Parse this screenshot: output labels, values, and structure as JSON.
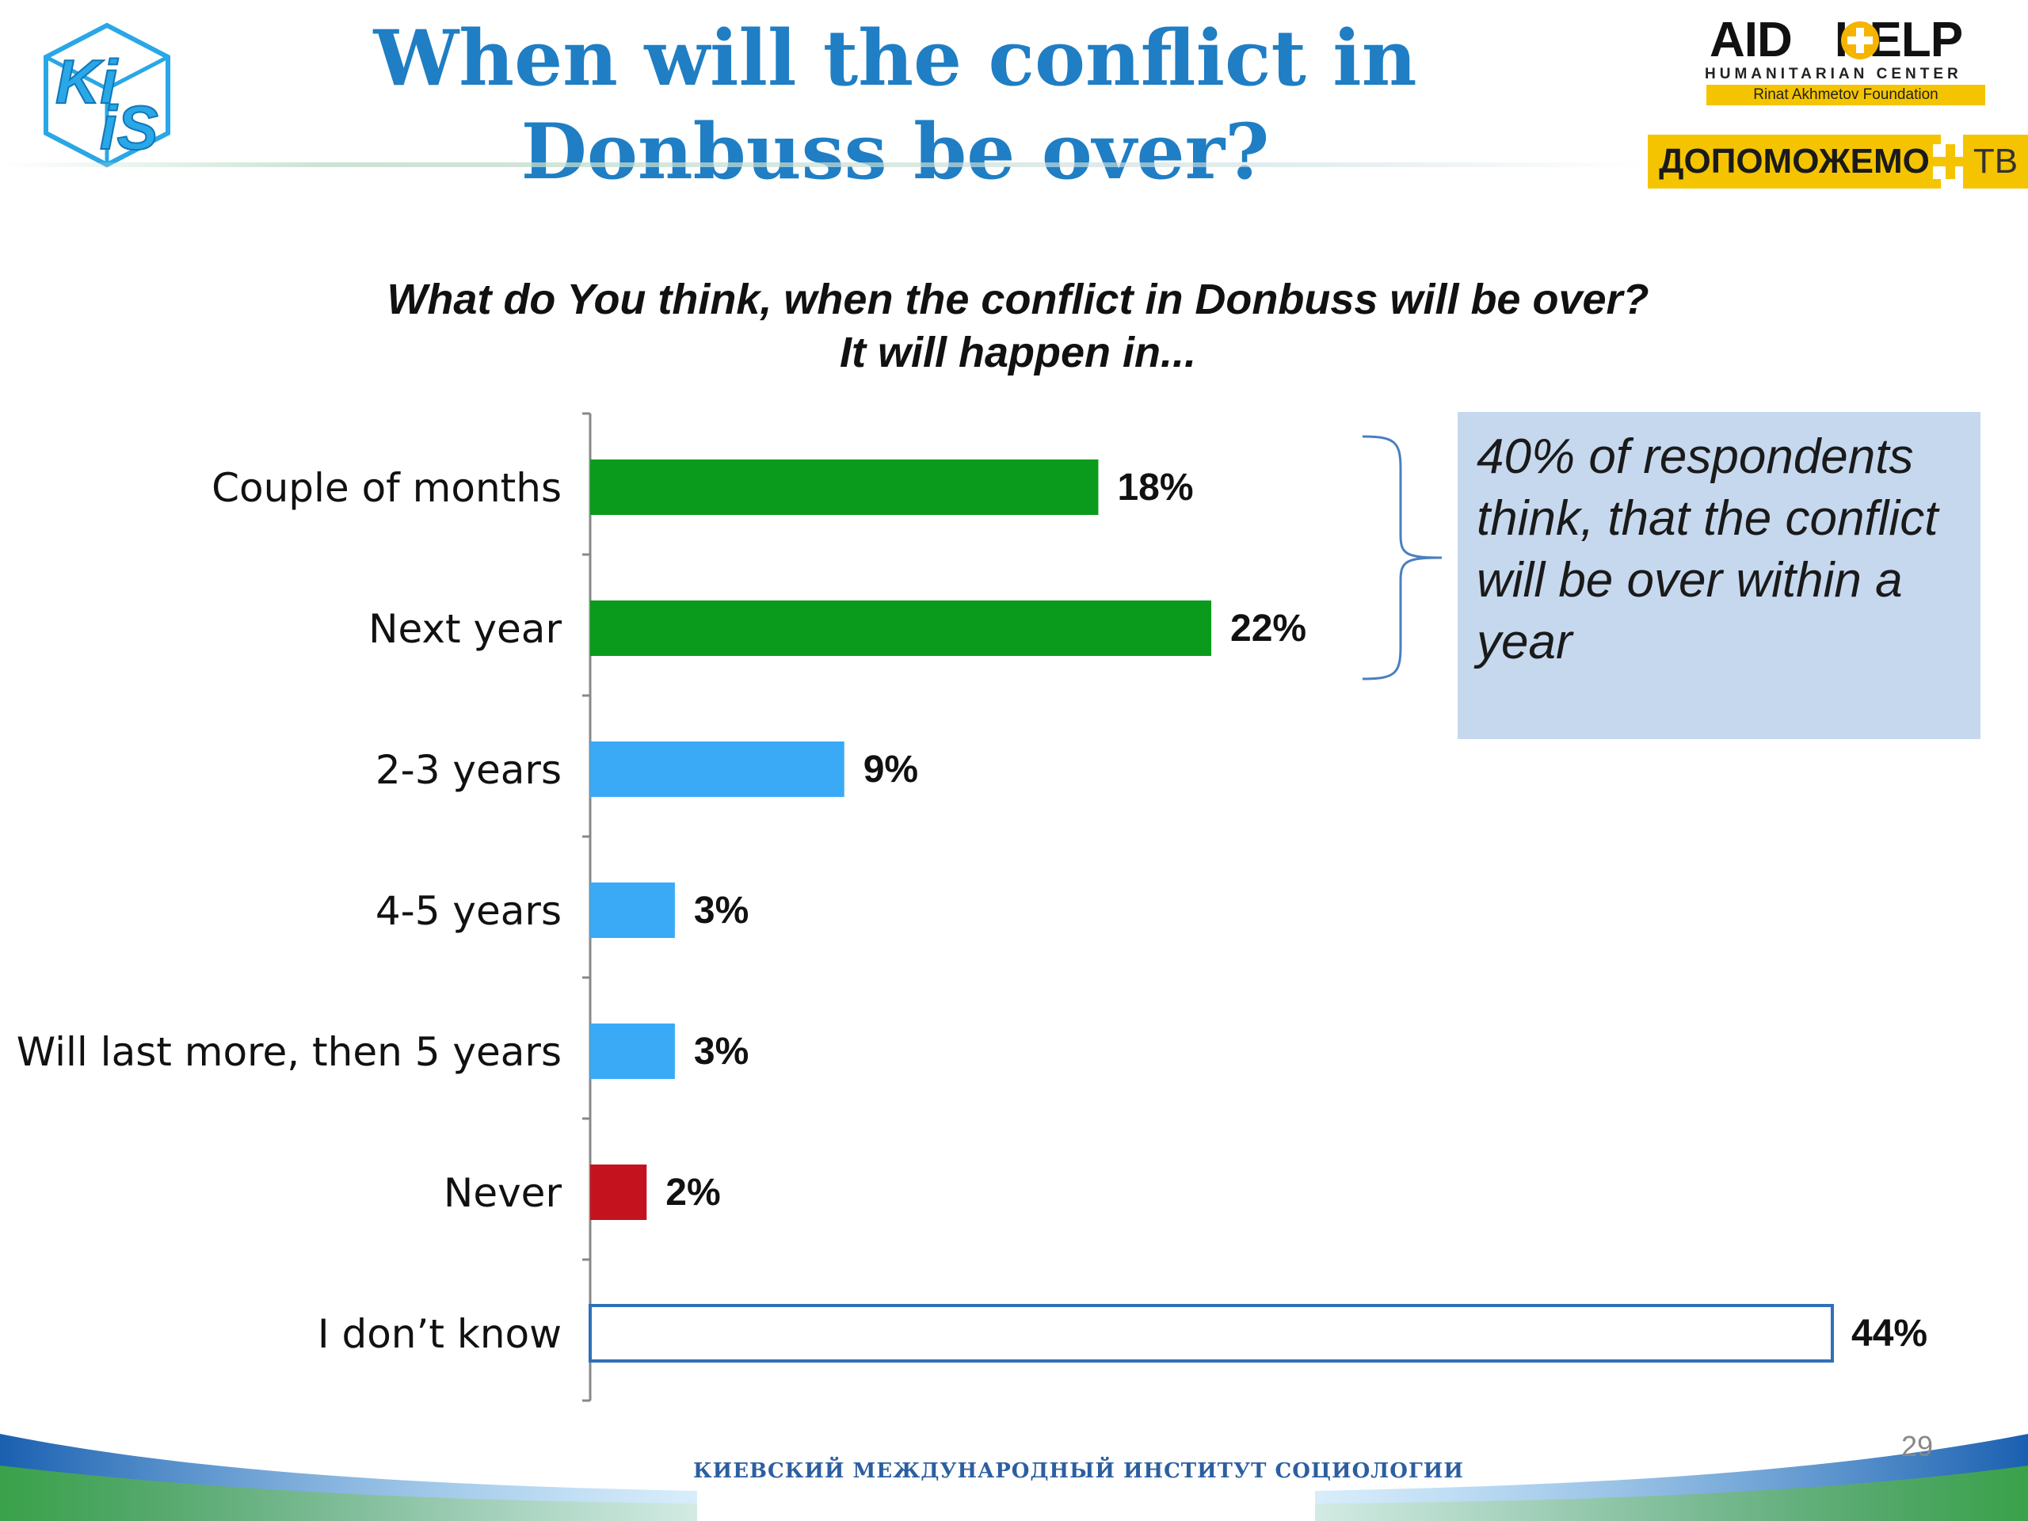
{
  "header": {
    "title": "When will the conflict in Donbuss be over?",
    "kiis_logo_text": "KiiS",
    "aidhelp": {
      "name_part1": "AID",
      "name_part2": "HELP",
      "subtitle": "HUMANITARIAN CENTER",
      "foundation": "Rinat Akhmetov Foundation"
    },
    "dopomozhemo": {
      "label": "ДОПОМОЖЕМО",
      "tv": "ТВ"
    }
  },
  "chart_data": {
    "type": "bar",
    "orientation": "horizontal",
    "title": "What do You think, when the conflict in Donbuss will be over?",
    "subtitle": "It will happen in...",
    "categories": [
      "Couple of months",
      "Next year",
      "2-3 years",
      "4-5 years",
      "Will last more, then 5 years",
      "Never",
      "I don’t know"
    ],
    "values": [
      18,
      22,
      9,
      3,
      3,
      2,
      44
    ],
    "data_labels": [
      "18%",
      "22%",
      "9%",
      "3%",
      "3%",
      "2%",
      "44%"
    ],
    "colors": [
      "#0a9b1c",
      "#0a9b1c",
      "#3aaaf7",
      "#3aaaf7",
      "#3aaaf7",
      "#c4131f",
      "#ffffff"
    ],
    "outline_colors": [
      "none",
      "none",
      "none",
      "none",
      "none",
      "none",
      "#2f70b8"
    ],
    "unit": "%",
    "xlim": [
      0,
      44
    ],
    "grid": false,
    "legend": "none"
  },
  "callout": {
    "text": "40% of respondents think, that the conflict will be over within a year",
    "bracketed_categories": [
      "Couple of months",
      "Next year"
    ]
  },
  "footer": {
    "organization": "КИЕВСКИЙ МЕЖДУНАРОДНЫЙ ИНСТИТУТ СОЦИОЛОГИИ",
    "page_number": "29"
  }
}
